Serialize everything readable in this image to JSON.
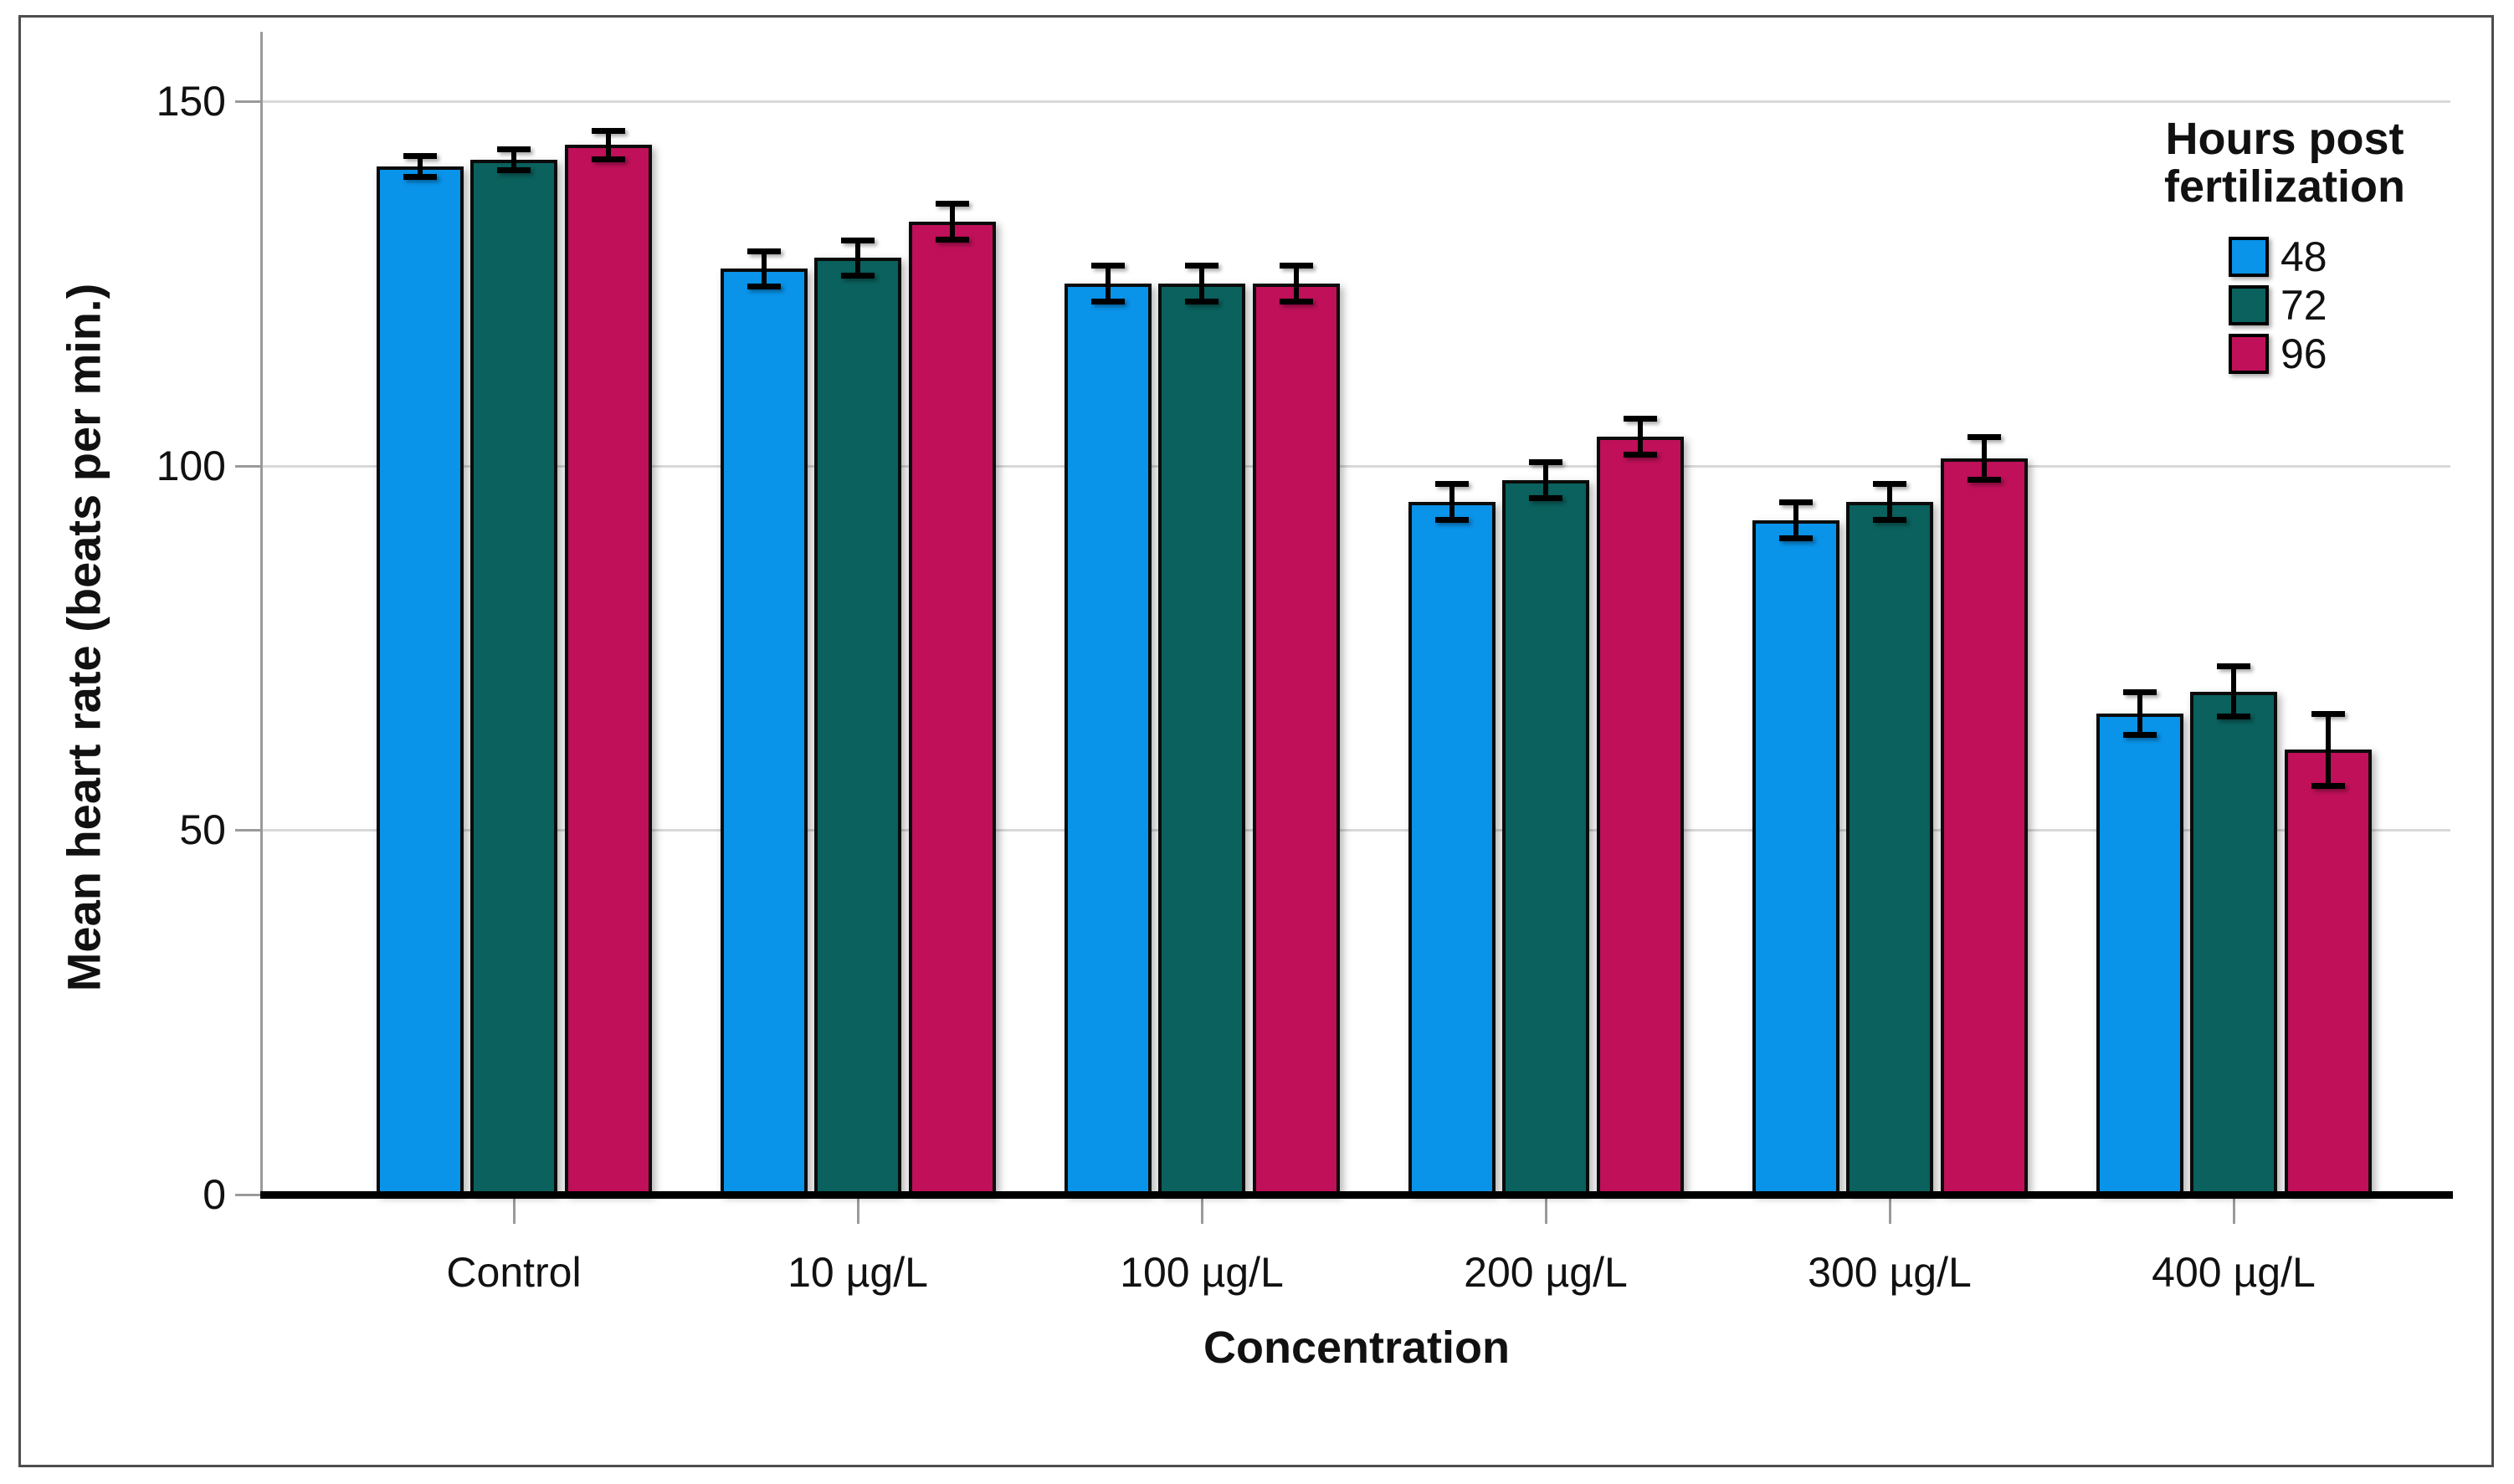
{
  "chart_data": {
    "type": "bar",
    "title": "",
    "xlabel": "Concentration",
    "ylabel": "Mean heart rate (beats per min.)",
    "categories": [
      "Control",
      "10 µg/L",
      "100 µg/L",
      "200 µg/L",
      "300 µg/L",
      "400 µg/L"
    ],
    "series": [
      {
        "name": "48",
        "color": "#0993E9",
        "values": [
          141,
          127,
          125,
          95,
          92.5,
          66
        ],
        "errors": [
          1.5,
          2.5,
          2.5,
          2.5,
          2.5,
          3
        ]
      },
      {
        "name": "72",
        "color": "#0A615D",
        "values": [
          142,
          128.5,
          125,
          98,
          95,
          69
        ],
        "errors": [
          1.5,
          2.5,
          2.5,
          2.5,
          2.5,
          3.5
        ]
      },
      {
        "name": "96",
        "color": "#BF1059",
        "values": [
          144,
          133.5,
          125,
          104,
          101,
          61
        ],
        "errors": [
          2,
          2.5,
          2.5,
          2.5,
          3,
          5
        ]
      }
    ],
    "error_bars": true,
    "y_ticks": [
      0,
      50,
      100,
      150
    ],
    "ylim": [
      0,
      160
    ],
    "grid": "horizontal",
    "legend": {
      "title_line1": "Hours post",
      "title_line2": "fertilization",
      "position": "top-right"
    }
  },
  "styles": {
    "bar_outline": "#0B0B0B",
    "gridline_color": "#D8D8D8",
    "axis_line_color": "#9A9A9A",
    "baseline_color": "#000000",
    "text_color": "#111111",
    "frame_border": "#4D4D4D",
    "series_colors": {
      "48": "#0993E9",
      "72": "#0A615D",
      "96": "#BF1059"
    }
  }
}
